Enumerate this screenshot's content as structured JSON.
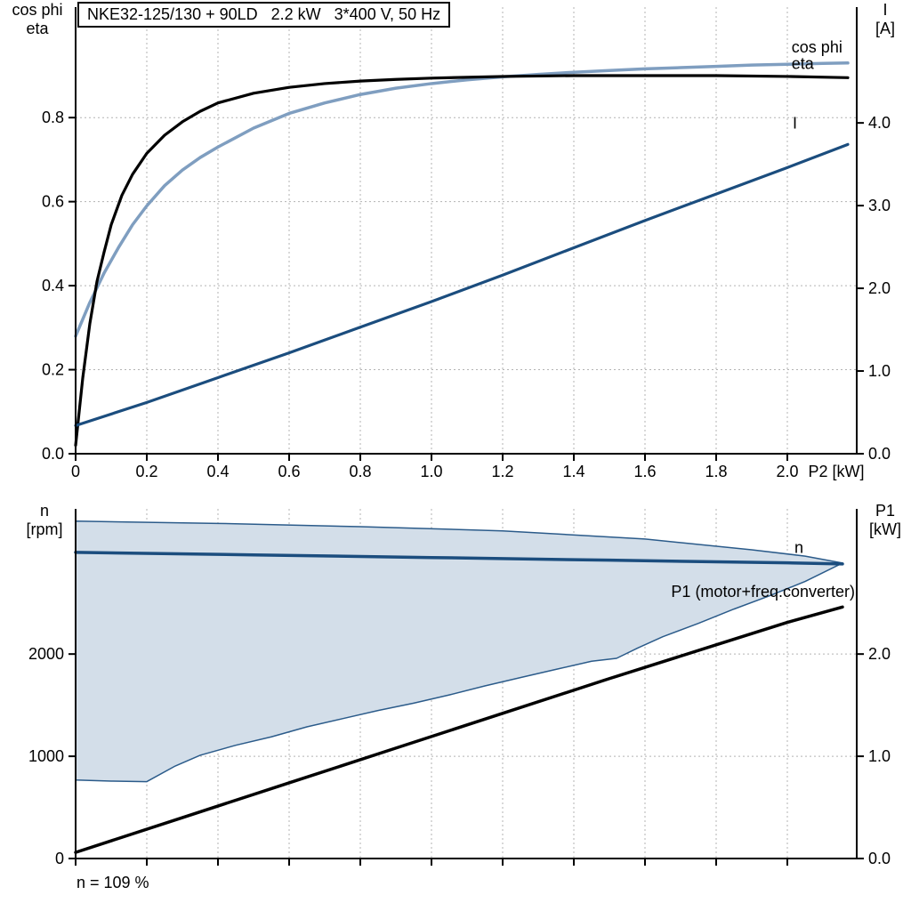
{
  "title_box": {
    "text": "NKE32-125/130 + 90LD   2.2 kW   3*400 V, 50 Hz"
  },
  "labels": {
    "top_left": [
      "cos phi",
      "eta"
    ],
    "top_right": [
      "I",
      "[A]"
    ],
    "bottom_left": [
      "n",
      "[rpm]"
    ],
    "bottom_right": [
      "P1",
      "[kW]"
    ],
    "footnote": "n = 109 %"
  },
  "colors": {
    "cos_phi": "#7f9ec0",
    "eta": "#000000",
    "current": "#1b4d7e",
    "speed": "#1b4d7e",
    "p1": "#000000",
    "envelope_fill": "#d3dee9",
    "envelope_stroke": "#2b5b8a",
    "grid": "#b3b3b3"
  },
  "chart_data": [
    {
      "type": "line",
      "name": "motor-curves-chart",
      "title": "NKE32-125/130 + 90LD   2.2 kW   3*400 V, 50 Hz",
      "xlabel": "P2 [kW]",
      "x_range": [
        0,
        2.195
      ],
      "x_ticks": [
        {
          "v": 0,
          "label": "0"
        },
        {
          "v": 0.2,
          "label": "0.2"
        },
        {
          "v": 0.4,
          "label": "0.4"
        },
        {
          "v": 0.6,
          "label": "0.6"
        },
        {
          "v": 0.8,
          "label": "0.8"
        },
        {
          "v": 1.0,
          "label": "1.0"
        },
        {
          "v": 1.2,
          "label": "1.2"
        },
        {
          "v": 1.4,
          "label": "1.4"
        },
        {
          "v": 1.6,
          "label": "1.6"
        },
        {
          "v": 1.8,
          "label": "1.8"
        },
        {
          "v": 2.0,
          "label": "2.0"
        }
      ],
      "y_left": {
        "label": "cos phi / eta",
        "range": [
          0,
          1.063
        ],
        "ticks": [
          {
            "v": 0,
            "label": "0.0"
          },
          {
            "v": 0.2,
            "label": "0.2"
          },
          {
            "v": 0.4,
            "label": "0.4"
          },
          {
            "v": 0.6,
            "label": "0.6"
          },
          {
            "v": 0.8,
            "label": "0.8"
          }
        ]
      },
      "y_right": {
        "label": "I [A]",
        "range": [
          0,
          5.4
        ],
        "ticks": [
          {
            "v": 0,
            "label": "0.0"
          },
          {
            "v": 1,
            "label": "1.0"
          },
          {
            "v": 2,
            "label": "2.0"
          },
          {
            "v": 3,
            "label": "3.0"
          },
          {
            "v": 4,
            "label": "4.0"
          }
        ]
      },
      "series": [
        {
          "name": "cos-phi",
          "axis": "left",
          "color": "#7f9ec0",
          "width": 3.5,
          "label": {
            "text": "cos phi",
            "x": 2.012,
            "y": 0.955,
            "anchor": "start"
          },
          "points": [
            [
              0,
              0.28
            ],
            [
              0.04,
              0.36
            ],
            [
              0.08,
              0.43
            ],
            [
              0.12,
              0.49
            ],
            [
              0.16,
              0.545
            ],
            [
              0.2,
              0.59
            ],
            [
              0.25,
              0.638
            ],
            [
              0.3,
              0.675
            ],
            [
              0.35,
              0.705
            ],
            [
              0.4,
              0.73
            ],
            [
              0.5,
              0.775
            ],
            [
              0.6,
              0.81
            ],
            [
              0.7,
              0.835
            ],
            [
              0.8,
              0.855
            ],
            [
              0.9,
              0.87
            ],
            [
              1,
              0.881
            ],
            [
              1.1,
              0.89
            ],
            [
              1.2,
              0.897
            ],
            [
              1.3,
              0.903
            ],
            [
              1.4,
              0.908
            ],
            [
              1.5,
              0.912
            ],
            [
              1.6,
              0.916
            ],
            [
              1.7,
              0.919
            ],
            [
              1.8,
              0.922
            ],
            [
              1.9,
              0.925
            ],
            [
              2,
              0.927
            ],
            [
              2.1,
              0.929
            ],
            [
              2.17,
              0.93
            ]
          ]
        },
        {
          "name": "eta",
          "axis": "left",
          "color": "#000000",
          "width": 3.2,
          "label": {
            "text": "eta",
            "x": 2.012,
            "y": 0.916,
            "anchor": "start"
          },
          "points": [
            [
              0,
              0.02
            ],
            [
              0.02,
              0.18
            ],
            [
              0.04,
              0.31
            ],
            [
              0.06,
              0.41
            ],
            [
              0.08,
              0.48
            ],
            [
              0.1,
              0.545
            ],
            [
              0.13,
              0.615
            ],
            [
              0.16,
              0.665
            ],
            [
              0.2,
              0.715
            ],
            [
              0.25,
              0.758
            ],
            [
              0.3,
              0.79
            ],
            [
              0.35,
              0.815
            ],
            [
              0.4,
              0.835
            ],
            [
              0.5,
              0.858
            ],
            [
              0.6,
              0.872
            ],
            [
              0.7,
              0.881
            ],
            [
              0.8,
              0.887
            ],
            [
              0.9,
              0.891
            ],
            [
              1,
              0.894
            ],
            [
              1.2,
              0.898
            ],
            [
              1.4,
              0.9
            ],
            [
              1.6,
              0.9
            ],
            [
              1.8,
              0.9
            ],
            [
              2,
              0.898
            ],
            [
              2.17,
              0.895
            ]
          ]
        },
        {
          "name": "current-I",
          "axis": "right",
          "color": "#1b4d7e",
          "width": 3.2,
          "label": {
            "text": "I",
            "x": 2.015,
            "y": 3.93,
            "anchor": "start"
          },
          "points": [
            [
              0,
              0.34
            ],
            [
              0.2,
              0.62
            ],
            [
              0.4,
              0.92
            ],
            [
              0.6,
              1.22
            ],
            [
              0.8,
              1.53
            ],
            [
              1,
              1.84
            ],
            [
              1.2,
              2.16
            ],
            [
              1.4,
              2.49
            ],
            [
              1.6,
              2.82
            ],
            [
              1.8,
              3.14
            ],
            [
              2,
              3.46
            ],
            [
              2.17,
              3.74
            ]
          ]
        }
      ]
    },
    {
      "type": "line",
      "name": "speed-power-chart",
      "xlabel": "",
      "x_range": [
        0,
        2.195
      ],
      "x_ticks": [
        {
          "v": 0,
          "label": ""
        },
        {
          "v": 0.2,
          "label": ""
        },
        {
          "v": 0.4,
          "label": ""
        },
        {
          "v": 0.6,
          "label": ""
        },
        {
          "v": 0.8,
          "label": ""
        },
        {
          "v": 1.0,
          "label": ""
        },
        {
          "v": 1.2,
          "label": ""
        },
        {
          "v": 1.4,
          "label": ""
        },
        {
          "v": 1.6,
          "label": ""
        },
        {
          "v": 1.8,
          "label": ""
        },
        {
          "v": 2.0,
          "label": ""
        }
      ],
      "y_left": {
        "label": "n [rpm]",
        "range": [
          0,
          3420
        ],
        "ticks": [
          {
            "v": 0,
            "label": "0"
          },
          {
            "v": 1000,
            "label": "1000"
          },
          {
            "v": 2000,
            "label": "2000"
          }
        ]
      },
      "y_right": {
        "label": "P1 [kW]",
        "range": [
          0,
          3.42
        ],
        "ticks": [
          {
            "v": 0,
            "label": "0.0"
          },
          {
            "v": 1,
            "label": "1.0"
          },
          {
            "v": 2,
            "label": "2.0"
          }
        ]
      },
      "area": {
        "name": "speed-control-range",
        "axis": "left",
        "fill": "#d3dee9",
        "stroke": "#2b5b8a",
        "stroke_width": 1.5,
        "upper": [
          [
            0,
            3300
          ],
          [
            0.4,
            3278
          ],
          [
            0.8,
            3246
          ],
          [
            1.2,
            3205
          ],
          [
            1.6,
            3125
          ],
          [
            1.9,
            3020
          ],
          [
            2.05,
            2958
          ],
          [
            2.155,
            2890
          ]
        ],
        "lower": [
          [
            0,
            768
          ],
          [
            0.1,
            757
          ],
          [
            0.2,
            752
          ],
          [
            0.28,
            905
          ],
          [
            0.35,
            1010
          ],
          [
            0.45,
            1108
          ],
          [
            0.55,
            1190
          ],
          [
            0.65,
            1288
          ],
          [
            0.75,
            1368
          ],
          [
            0.85,
            1448
          ],
          [
            0.95,
            1520
          ],
          [
            1.05,
            1600
          ],
          [
            1.15,
            1688
          ],
          [
            1.25,
            1770
          ],
          [
            1.35,
            1850
          ],
          [
            1.45,
            1930
          ],
          [
            1.52,
            1958
          ],
          [
            1.58,
            2060
          ],
          [
            1.65,
            2170
          ],
          [
            1.75,
            2300
          ],
          [
            1.85,
            2440
          ],
          [
            1.95,
            2570
          ],
          [
            2.05,
            2710
          ],
          [
            2.155,
            2890
          ]
        ]
      },
      "series": [
        {
          "name": "speed-n",
          "axis": "left",
          "color": "#1b4d7e",
          "width": 3.5,
          "label": {
            "text": "n",
            "x": 2.02,
            "y": 2990,
            "anchor": "start"
          },
          "points": [
            [
              0,
              2995
            ],
            [
              0.5,
              2970
            ],
            [
              1,
              2944
            ],
            [
              1.5,
              2918
            ],
            [
              2,
              2892
            ],
            [
              2.155,
              2882
            ]
          ]
        },
        {
          "name": "p1-motor-freq-converter",
          "axis": "right",
          "color": "#000000",
          "width": 3.5,
          "label": {
            "text": "P1 (motor+freq.converter)",
            "x": 2.19,
            "y": 2.56,
            "anchor": "end"
          },
          "points": [
            [
              0,
              0.06
            ],
            [
              0.3,
              0.4
            ],
            [
              0.6,
              0.74
            ],
            [
              0.9,
              1.08
            ],
            [
              1.2,
              1.42
            ],
            [
              1.5,
              1.76
            ],
            [
              1.8,
              2.09
            ],
            [
              2,
              2.31
            ],
            [
              2.155,
              2.46
            ]
          ]
        }
      ],
      "footnote": "n = 109 %"
    }
  ]
}
